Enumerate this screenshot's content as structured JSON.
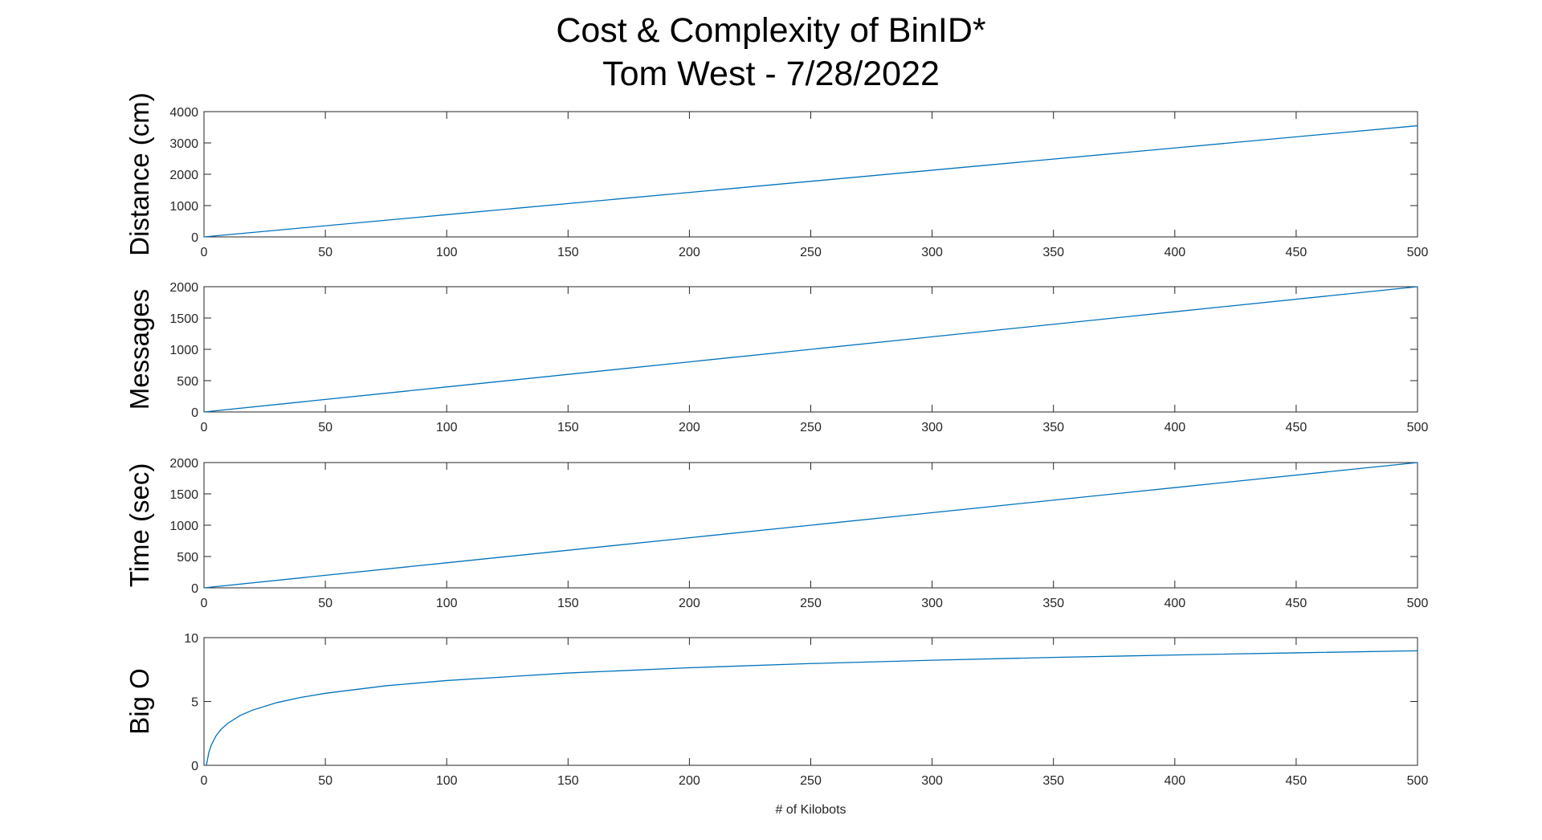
{
  "title_lines": [
    "Cost & Complexity of BinID*",
    "Tom West - 7/28/2022"
  ],
  "line_color": "#0072BD",
  "axis_color": "#262626",
  "chart_data": [
    {
      "type": "line",
      "ylabel": "Distance (cm)",
      "xlabel": "",
      "xlim": [
        0,
        500
      ],
      "ylim": [
        0,
        4000
      ],
      "xticks": [
        0,
        50,
        100,
        150,
        200,
        250,
        300,
        350,
        400,
        450,
        500
      ],
      "yticks": [
        0,
        1000,
        2000,
        3000,
        4000
      ],
      "grid": false,
      "series": [
        {
          "x": [
            0,
            100,
            200,
            300,
            400,
            500
          ],
          "y": [
            0,
            710,
            1420,
            2130,
            2840,
            3550
          ]
        }
      ]
    },
    {
      "type": "line",
      "ylabel": "Messages",
      "xlabel": "",
      "xlim": [
        0,
        500
      ],
      "ylim": [
        0,
        2000
      ],
      "xticks": [
        0,
        50,
        100,
        150,
        200,
        250,
        300,
        350,
        400,
        450,
        500
      ],
      "yticks": [
        0,
        500,
        1000,
        1500,
        2000
      ],
      "grid": false,
      "series": [
        {
          "x": [
            0,
            100,
            200,
            300,
            400,
            500
          ],
          "y": [
            0,
            400,
            800,
            1200,
            1600,
            2000
          ]
        }
      ]
    },
    {
      "type": "line",
      "ylabel": "Time (sec)",
      "xlabel": "",
      "xlim": [
        0,
        500
      ],
      "ylim": [
        0,
        2000
      ],
      "xticks": [
        0,
        50,
        100,
        150,
        200,
        250,
        300,
        350,
        400,
        450,
        500
      ],
      "yticks": [
        0,
        500,
        1000,
        1500,
        2000
      ],
      "grid": false,
      "series": [
        {
          "x": [
            0,
            100,
            200,
            300,
            400,
            500
          ],
          "y": [
            0,
            400,
            800,
            1200,
            1600,
            2000
          ]
        }
      ]
    },
    {
      "type": "line",
      "ylabel": "Big O",
      "xlabel": "# of Kilobots",
      "xlim": [
        0,
        500
      ],
      "ylim": [
        0,
        10
      ],
      "xticks": [
        0,
        50,
        100,
        150,
        200,
        250,
        300,
        350,
        400,
        450,
        500
      ],
      "yticks": [
        0,
        5,
        10
      ],
      "grid": false,
      "series": [
        {
          "x": [
            1,
            2,
            3,
            5,
            7,
            10,
            15,
            20,
            30,
            40,
            50,
            75,
            100,
            150,
            200,
            250,
            300,
            350,
            400,
            450,
            500
          ],
          "y": [
            0,
            1,
            1.58,
            2.32,
            2.81,
            3.32,
            3.91,
            4.32,
            4.91,
            5.32,
            5.64,
            6.23,
            6.64,
            7.23,
            7.64,
            7.97,
            8.23,
            8.45,
            8.64,
            8.81,
            8.97
          ]
        }
      ]
    }
  ]
}
